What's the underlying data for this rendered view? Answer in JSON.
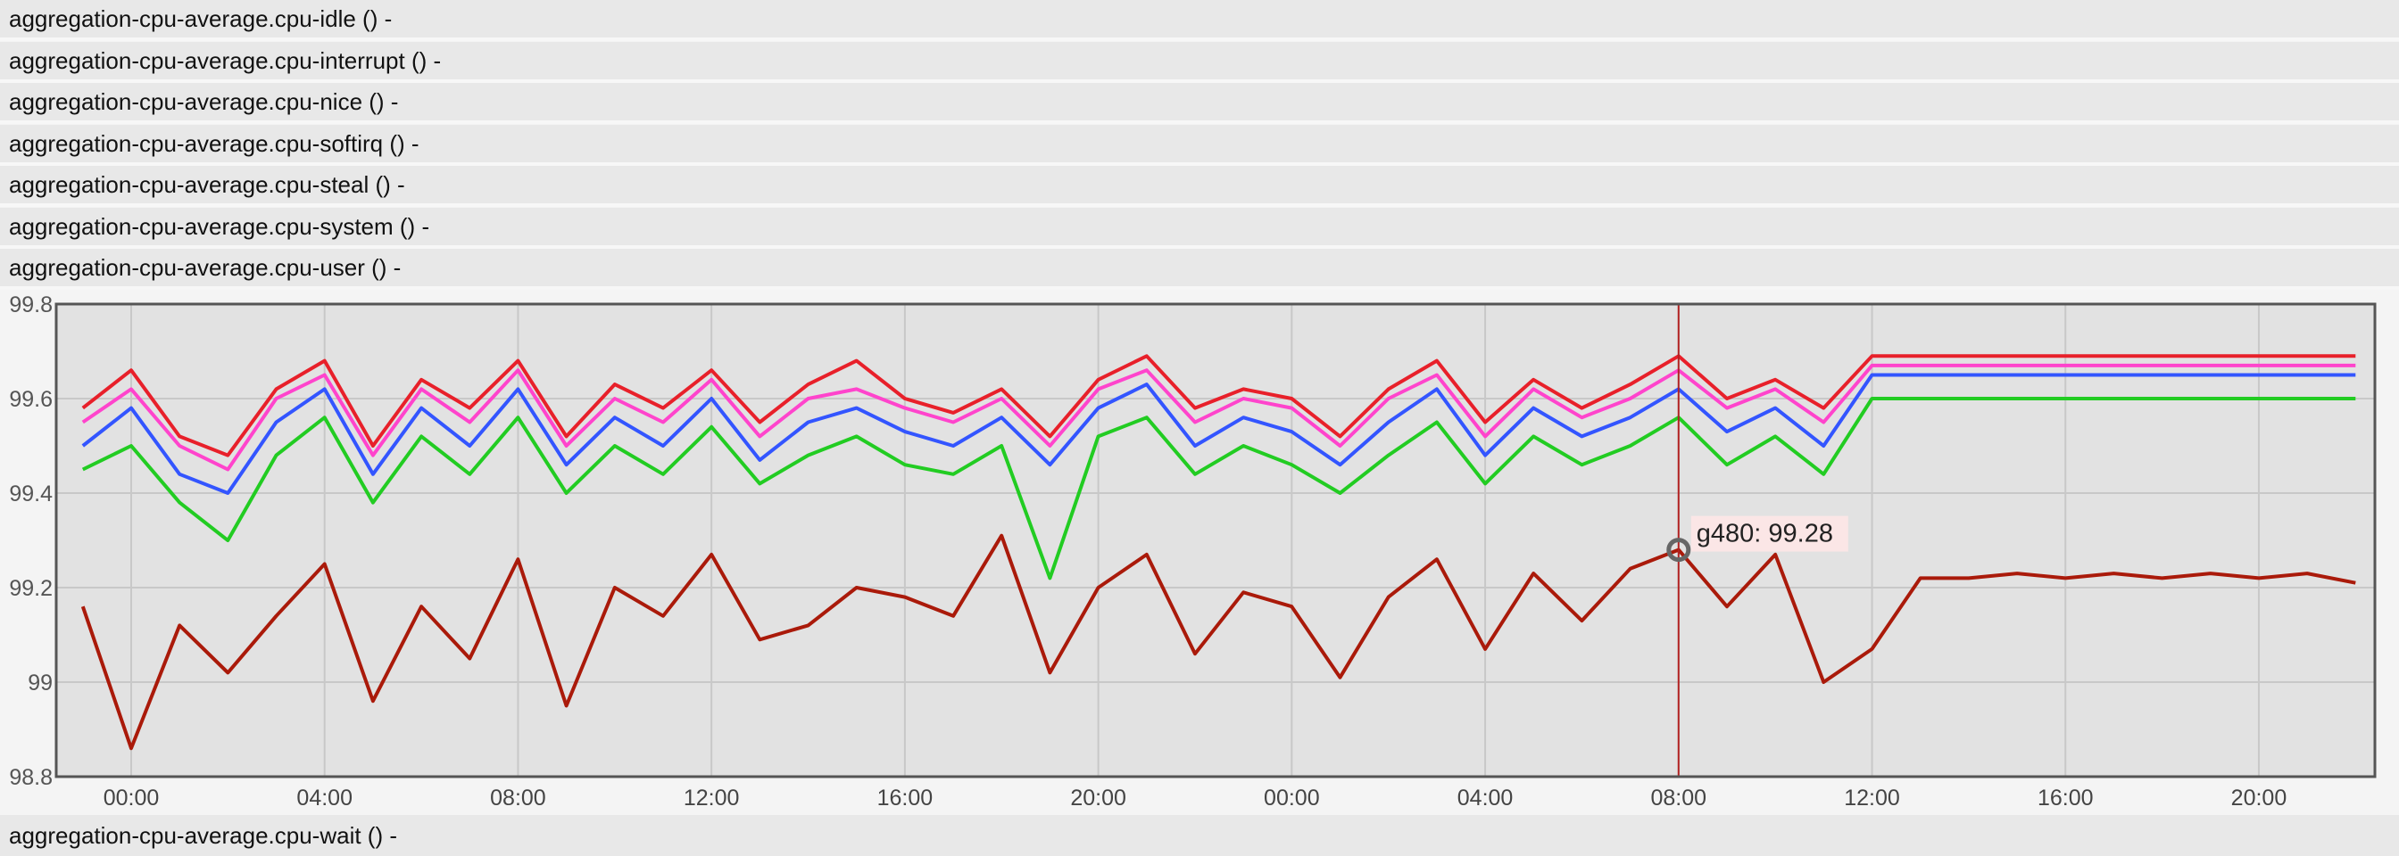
{
  "rows": [
    "aggregation-cpu-average.cpu-idle () -",
    "aggregation-cpu-average.cpu-interrupt () -",
    "aggregation-cpu-average.cpu-nice () -",
    "aggregation-cpu-average.cpu-softirq () -",
    "aggregation-cpu-average.cpu-steal () -",
    "aggregation-cpu-average.cpu-system () -",
    "aggregation-cpu-average.cpu-user () -"
  ],
  "footer_row": "aggregation-cpu-average.cpu-wait () -",
  "chart_data": {
    "type": "line",
    "x": [
      -1,
      0,
      1,
      2,
      3,
      4,
      5,
      6,
      7,
      8,
      9,
      10,
      11,
      12,
      13,
      14,
      15,
      16,
      17,
      18,
      19,
      20,
      21,
      22,
      23,
      24,
      25,
      26,
      27,
      28,
      29,
      30,
      31,
      32,
      33,
      34,
      35,
      36,
      37,
      38,
      39,
      40,
      41,
      42,
      43,
      44,
      45,
      46
    ],
    "series": [
      {
        "color": "#ff44cc",
        "values": [
          99.55,
          99.62,
          99.5,
          99.45,
          99.6,
          99.65,
          99.48,
          99.62,
          99.55,
          99.66,
          99.5,
          99.6,
          99.55,
          99.64,
          99.52,
          99.6,
          99.62,
          99.58,
          99.55,
          99.6,
          99.5,
          99.62,
          99.66,
          99.55,
          99.6,
          99.58,
          99.5,
          99.6,
          99.65,
          99.52,
          99.62,
          99.56,
          99.6,
          99.66,
          99.58,
          99.62,
          99.55,
          99.67,
          99.67,
          99.67,
          99.67,
          99.67,
          99.67,
          99.67,
          99.67,
          99.67,
          99.67,
          99.67
        ]
      },
      {
        "color": "#e8202a",
        "values": [
          99.58,
          99.66,
          99.52,
          99.48,
          99.62,
          99.68,
          99.5,
          99.64,
          99.58,
          99.68,
          99.52,
          99.63,
          99.58,
          99.66,
          99.55,
          99.63,
          99.68,
          99.6,
          99.57,
          99.62,
          99.52,
          99.64,
          99.69,
          99.58,
          99.62,
          99.6,
          99.52,
          99.62,
          99.68,
          99.55,
          99.64,
          99.58,
          99.63,
          99.69,
          99.6,
          99.64,
          99.58,
          99.69,
          99.69,
          99.69,
          99.69,
          99.69,
          99.69,
          99.69,
          99.69,
          99.69,
          99.69,
          99.69
        ]
      },
      {
        "color": "#3355ff",
        "values": [
          99.5,
          99.58,
          99.44,
          99.4,
          99.55,
          99.62,
          99.44,
          99.58,
          99.5,
          99.62,
          99.46,
          99.56,
          99.5,
          99.6,
          99.47,
          99.55,
          99.58,
          99.53,
          99.5,
          99.56,
          99.46,
          99.58,
          99.63,
          99.5,
          99.56,
          99.53,
          99.46,
          99.55,
          99.62,
          99.48,
          99.58,
          99.52,
          99.56,
          99.62,
          99.53,
          99.58,
          99.5,
          99.65,
          99.65,
          99.65,
          99.65,
          99.65,
          99.65,
          99.65,
          99.65,
          99.65,
          99.65,
          99.65
        ]
      },
      {
        "color": "#22cc22",
        "values": [
          99.45,
          99.5,
          99.38,
          99.3,
          99.48,
          99.56,
          99.38,
          99.52,
          99.44,
          99.56,
          99.4,
          99.5,
          99.44,
          99.54,
          99.42,
          99.48,
          99.52,
          99.46,
          99.44,
          99.5,
          99.22,
          99.52,
          99.56,
          99.44,
          99.5,
          99.46,
          99.4,
          99.48,
          99.55,
          99.42,
          99.52,
          99.46,
          99.5,
          99.56,
          99.46,
          99.52,
          99.44,
          99.6,
          99.6,
          99.6,
          99.6,
          99.6,
          99.6,
          99.6,
          99.6,
          99.6,
          99.6,
          99.6
        ]
      },
      {
        "name": "g480",
        "color": "#aa1a0a",
        "values": [
          99.16,
          98.86,
          99.12,
          99.02,
          99.14,
          99.25,
          98.96,
          99.16,
          99.05,
          99.26,
          98.95,
          99.2,
          99.14,
          99.27,
          99.09,
          99.12,
          99.2,
          99.18,
          99.14,
          99.31,
          99.02,
          99.2,
          99.27,
          99.06,
          99.19,
          99.16,
          99.01,
          99.18,
          99.26,
          99.07,
          99.23,
          99.13,
          99.24,
          99.28,
          99.16,
          99.27,
          99.0,
          99.07,
          99.22,
          99.22,
          99.23,
          99.22,
          99.23,
          99.22,
          99.23,
          99.22,
          99.23,
          99.21
        ]
      }
    ],
    "xlim": [
      -1.55,
      46.4
    ],
    "xticks": [
      {
        "value": 0,
        "label": "00:00"
      },
      {
        "value": 4,
        "label": "04:00"
      },
      {
        "value": 8,
        "label": "08:00"
      },
      {
        "value": 12,
        "label": "12:00"
      },
      {
        "value": 16,
        "label": "16:00"
      },
      {
        "value": 20,
        "label": "20:00"
      },
      {
        "value": 24,
        "label": "00:00"
      },
      {
        "value": 28,
        "label": "04:00"
      },
      {
        "value": 32,
        "label": "08:00"
      },
      {
        "value": 36,
        "label": "12:00"
      },
      {
        "value": 40,
        "label": "16:00"
      },
      {
        "value": 44,
        "label": "20:00"
      }
    ],
    "ylim": [
      98.8,
      99.8
    ],
    "yticks": [
      98.8,
      99,
      99.2,
      99.4,
      99.6,
      99.8
    ],
    "grid": true,
    "tooltip": {
      "x": 32,
      "series": 4,
      "label": "g480: 99.28"
    }
  }
}
